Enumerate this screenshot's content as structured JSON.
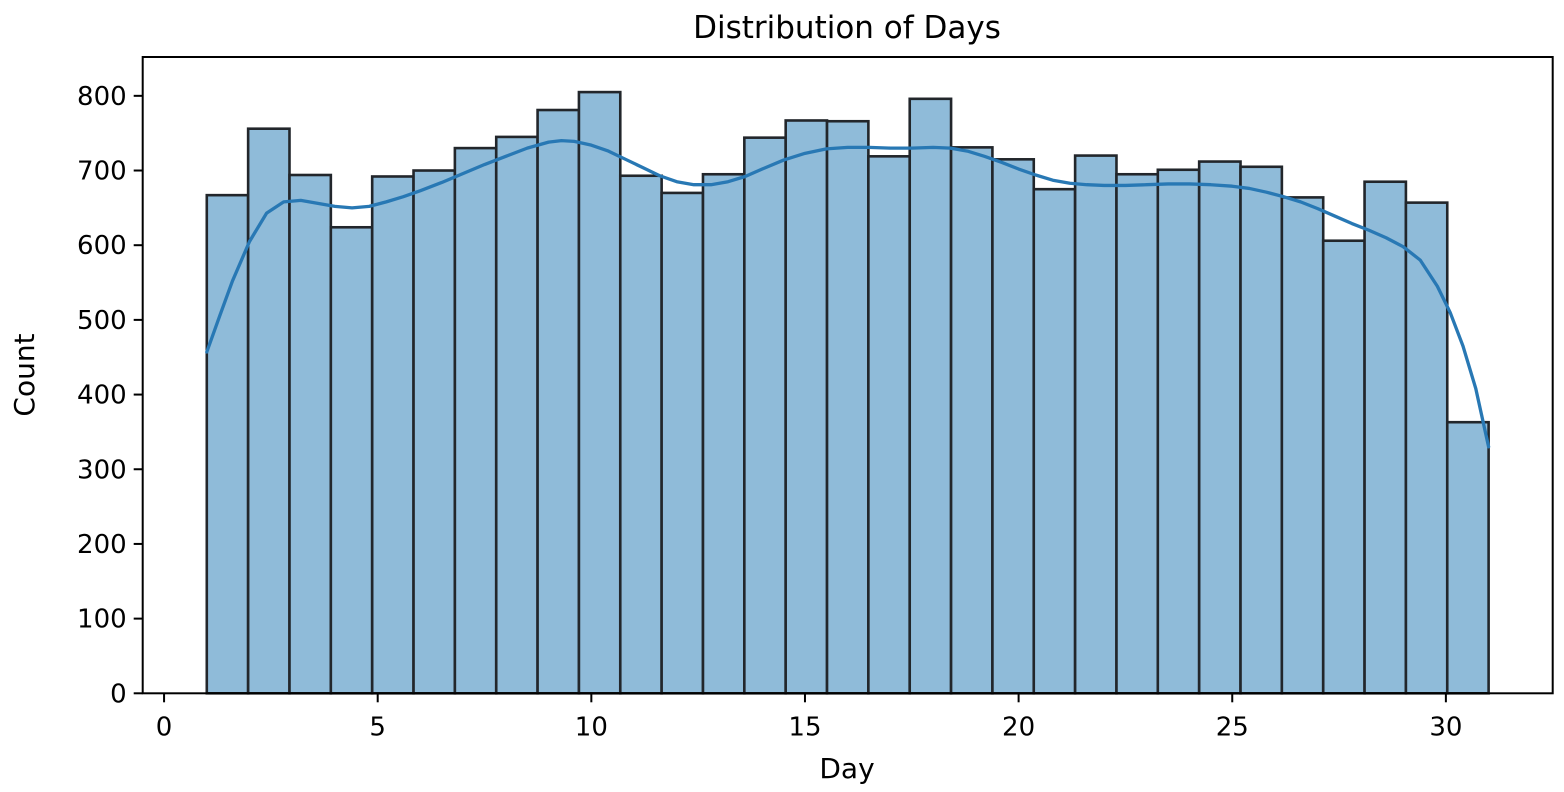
{
  "chart_data": {
    "type": "histogram",
    "title": "Distribution of Days",
    "xlabel": "Day",
    "ylabel": "Count",
    "xlim": [
      -0.5,
      32.5
    ],
    "ylim": [
      0,
      852
    ],
    "xticks": [
      0,
      5,
      10,
      15,
      20,
      25,
      30
    ],
    "yticks": [
      0,
      100,
      200,
      300,
      400,
      500,
      600,
      700,
      800
    ],
    "grid": false,
    "legend": "none",
    "bin_start": 1,
    "bin_end": 31,
    "bin_count": 31,
    "bar_values": [
      667,
      756,
      694,
      624,
      692,
      700,
      730,
      745,
      781,
      805,
      693,
      670,
      695,
      744,
      767,
      766,
      719,
      796,
      731,
      715,
      675,
      720,
      695,
      701,
      712,
      705,
      664,
      606,
      685,
      657,
      363
    ],
    "kde_series": {
      "name": "kde",
      "x": [
        1.0,
        1.3,
        1.6,
        2.0,
        2.4,
        2.8,
        3.2,
        3.6,
        4.0,
        4.4,
        4.8,
        5.2,
        5.6,
        6.0,
        6.5,
        7.0,
        7.5,
        8.0,
        8.5,
        9.0,
        9.3,
        9.6,
        10.0,
        10.4,
        10.8,
        11.2,
        11.6,
        12.0,
        12.4,
        12.8,
        13.2,
        13.6,
        14.0,
        14.5,
        15.0,
        15.5,
        16.0,
        16.5,
        17.0,
        17.5,
        18.0,
        18.4,
        18.8,
        19.2,
        19.6,
        20.0,
        20.4,
        20.8,
        21.2,
        21.6,
        22.0,
        22.5,
        23.0,
        23.5,
        24.0,
        24.5,
        25.0,
        25.4,
        25.8,
        26.2,
        26.6,
        27.0,
        27.4,
        27.8,
        28.2,
        28.6,
        29.0,
        29.4,
        29.8,
        30.1,
        30.4,
        30.7,
        31.0
      ],
      "y": [
        457,
        505,
        552,
        605,
        643,
        658,
        660,
        656,
        652,
        650,
        652,
        658,
        665,
        673,
        684,
        696,
        708,
        719,
        730,
        738,
        740,
        739,
        734,
        726,
        715,
        704,
        693,
        685,
        681,
        681,
        685,
        692,
        702,
        714,
        723,
        729,
        731,
        731,
        730,
        730,
        731,
        730,
        726,
        719,
        711,
        702,
        694,
        687,
        683,
        681,
        680,
        680,
        681,
        682,
        682,
        681,
        679,
        676,
        671,
        665,
        658,
        649,
        639,
        629,
        620,
        610,
        598,
        580,
        545,
        510,
        465,
        408,
        330
      ]
    },
    "colors": {
      "bar_fill": "#8fbbd9",
      "bar_edge": "#22262b",
      "kde_line": "#2878b4",
      "spine": "#000000",
      "text": "#000000",
      "background": "#ffffff"
    }
  }
}
